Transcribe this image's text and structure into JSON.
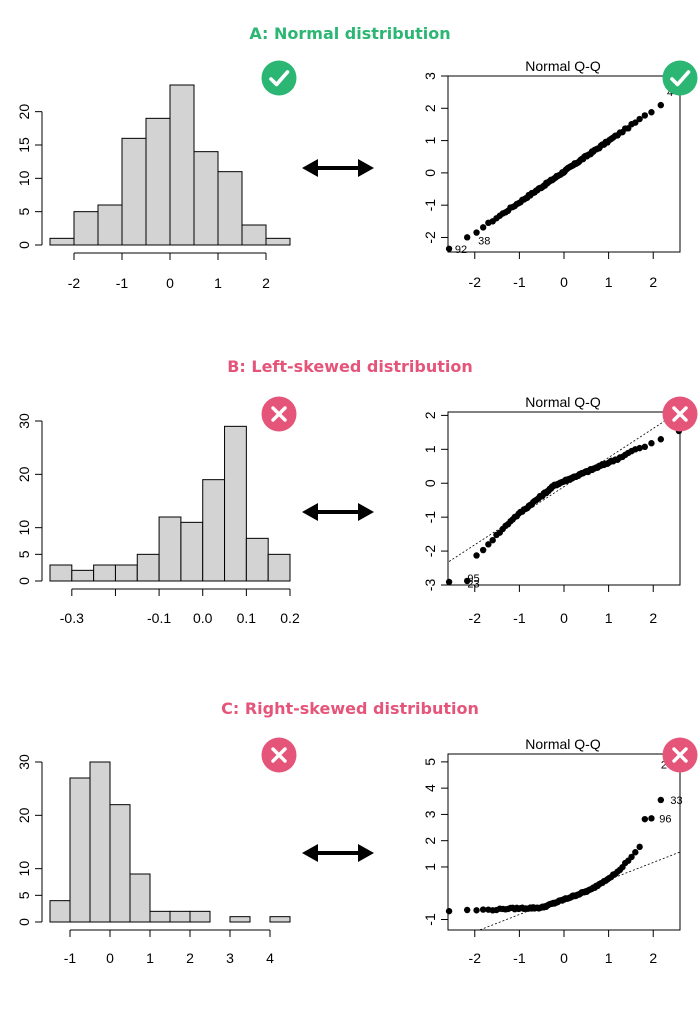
{
  "colors": {
    "good": "#2bb673",
    "bad": "#e5557a",
    "bar_fill": "#d3d3d3"
  },
  "icons": {
    "good": "checkmark-icon",
    "bad": "cross-icon",
    "arrow": "double-arrow-icon"
  },
  "chart_data": [
    {
      "panel": "A",
      "title": "A: Normal distribution",
      "status": "good",
      "histogram": {
        "type": "bar",
        "bins": [
          [
            -2.5,
            -2.0
          ],
          [
            -2.0,
            -1.5
          ],
          [
            -1.5,
            -1.0
          ],
          [
            -1.0,
            -0.5
          ],
          [
            -0.5,
            0.0
          ],
          [
            0.0,
            0.5
          ],
          [
            0.5,
            1.0
          ],
          [
            1.0,
            1.5
          ],
          [
            1.5,
            2.0
          ],
          [
            2.0,
            2.5
          ]
        ],
        "values": [
          1,
          5,
          6,
          16,
          19,
          24,
          14,
          11,
          3,
          1
        ],
        "xticks": [
          -2,
          -1,
          0,
          1,
          2
        ],
        "xlim": [
          -2.5,
          2.5
        ],
        "yticks": [
          0,
          5,
          10,
          15,
          20
        ],
        "ylim": [
          0,
          24
        ]
      },
      "qq": {
        "type": "scatter",
        "title": "Normal Q-Q",
        "xticks": [
          -2,
          -1,
          0,
          1,
          2
        ],
        "xlim": [
          -2.6,
          2.6
        ],
        "yticks": [
          -2,
          -1,
          0,
          1,
          2,
          3
        ],
        "ylim": [
          -2.45,
          3.0
        ],
        "reference_line": null,
        "labels": [
          {
            "text": "92",
            "x": -2.58,
            "y": -2.35
          },
          {
            "text": "38",
            "x": -2.06,
            "y": -2.1
          },
          {
            "text": "4",
            "x": 2.58,
            "y": 2.5
          }
        ]
      }
    },
    {
      "panel": "B",
      "title": "B: Left-skewed distribution",
      "status": "bad",
      "histogram": {
        "type": "bar",
        "bins": [
          [
            -0.35,
            -0.3
          ],
          [
            -0.3,
            -0.25
          ],
          [
            -0.25,
            -0.2
          ],
          [
            -0.2,
            -0.15
          ],
          [
            -0.15,
            -0.1
          ],
          [
            -0.1,
            -0.05
          ],
          [
            -0.05,
            0.0
          ],
          [
            0.0,
            0.05
          ],
          [
            0.05,
            0.1
          ],
          [
            0.1,
            0.15
          ],
          [
            0.15,
            0.2
          ]
        ],
        "values": [
          3,
          2,
          3,
          3,
          5,
          12,
          11,
          19,
          29,
          8,
          5
        ],
        "xticks": [
          -0.3,
          -0.1,
          0.0,
          0.1,
          0.2
        ],
        "xtick_labels": [
          "-0.3",
          "-0.1",
          "0.0",
          "0.1",
          "0.2"
        ],
        "xlim": [
          -0.35,
          0.2
        ],
        "yticks": [
          0,
          5,
          10,
          20,
          30
        ],
        "ylim": [
          0,
          30
        ]
      },
      "qq": {
        "type": "scatter",
        "title": "Normal Q-Q",
        "xticks": [
          -2,
          -1,
          0,
          1,
          2
        ],
        "xlim": [
          -2.6,
          2.6
        ],
        "yticks": [
          -3,
          -2,
          -1,
          0,
          1,
          2
        ],
        "ylim": [
          -3.0,
          2.1
        ],
        "reference_line": [
          [
            -2.8,
            -2.5
          ],
          [
            2.8,
            2.3
          ]
        ],
        "labels": [
          {
            "text": "95",
            "x": -2.3,
            "y": -2.8
          },
          {
            "text": "23",
            "x": -2.3,
            "y": -2.95
          }
        ]
      }
    },
    {
      "panel": "C",
      "title": "C: Right-skewed distribution",
      "status": "bad",
      "histogram": {
        "type": "bar",
        "bins": [
          [
            -1.5,
            -1.0
          ],
          [
            -1.0,
            -0.5
          ],
          [
            -0.5,
            0.0
          ],
          [
            0.0,
            0.5
          ],
          [
            0.5,
            1.0
          ],
          [
            1.0,
            1.5
          ],
          [
            1.5,
            2.0
          ],
          [
            2.0,
            2.5
          ],
          [
            2.5,
            3.0
          ],
          [
            3.0,
            3.5
          ],
          [
            3.5,
            4.0
          ],
          [
            4.0,
            4.5
          ]
        ],
        "values": [
          4,
          27,
          30,
          22,
          9,
          2,
          2,
          2,
          0,
          1,
          0,
          1
        ],
        "xticks": [
          -1,
          0,
          1,
          2,
          3,
          4
        ],
        "xlim": [
          -1.5,
          4.5
        ],
        "yticks": [
          0,
          5,
          10,
          20,
          30
        ],
        "ylim": [
          0,
          30
        ]
      },
      "qq": {
        "type": "scatter",
        "title": "Normal Q-Q",
        "xticks": [
          -2,
          -1,
          0,
          1,
          2
        ],
        "xlim": [
          -2.6,
          2.6
        ],
        "yticks": [
          -1,
          1,
          2,
          3,
          4,
          5
        ],
        "ylim": [
          -1.4,
          5.3
        ],
        "reference_line": [
          [
            -2.8,
            -2.0
          ],
          [
            2.8,
            1.7
          ]
        ],
        "labels": [
          {
            "text": "27",
            "x": 2.58,
            "y": 4.9
          },
          {
            "text": "33",
            "x": 2.25,
            "y": 3.55
          },
          {
            "text": "96",
            "x": 2.0,
            "y": 2.85
          }
        ]
      }
    }
  ]
}
